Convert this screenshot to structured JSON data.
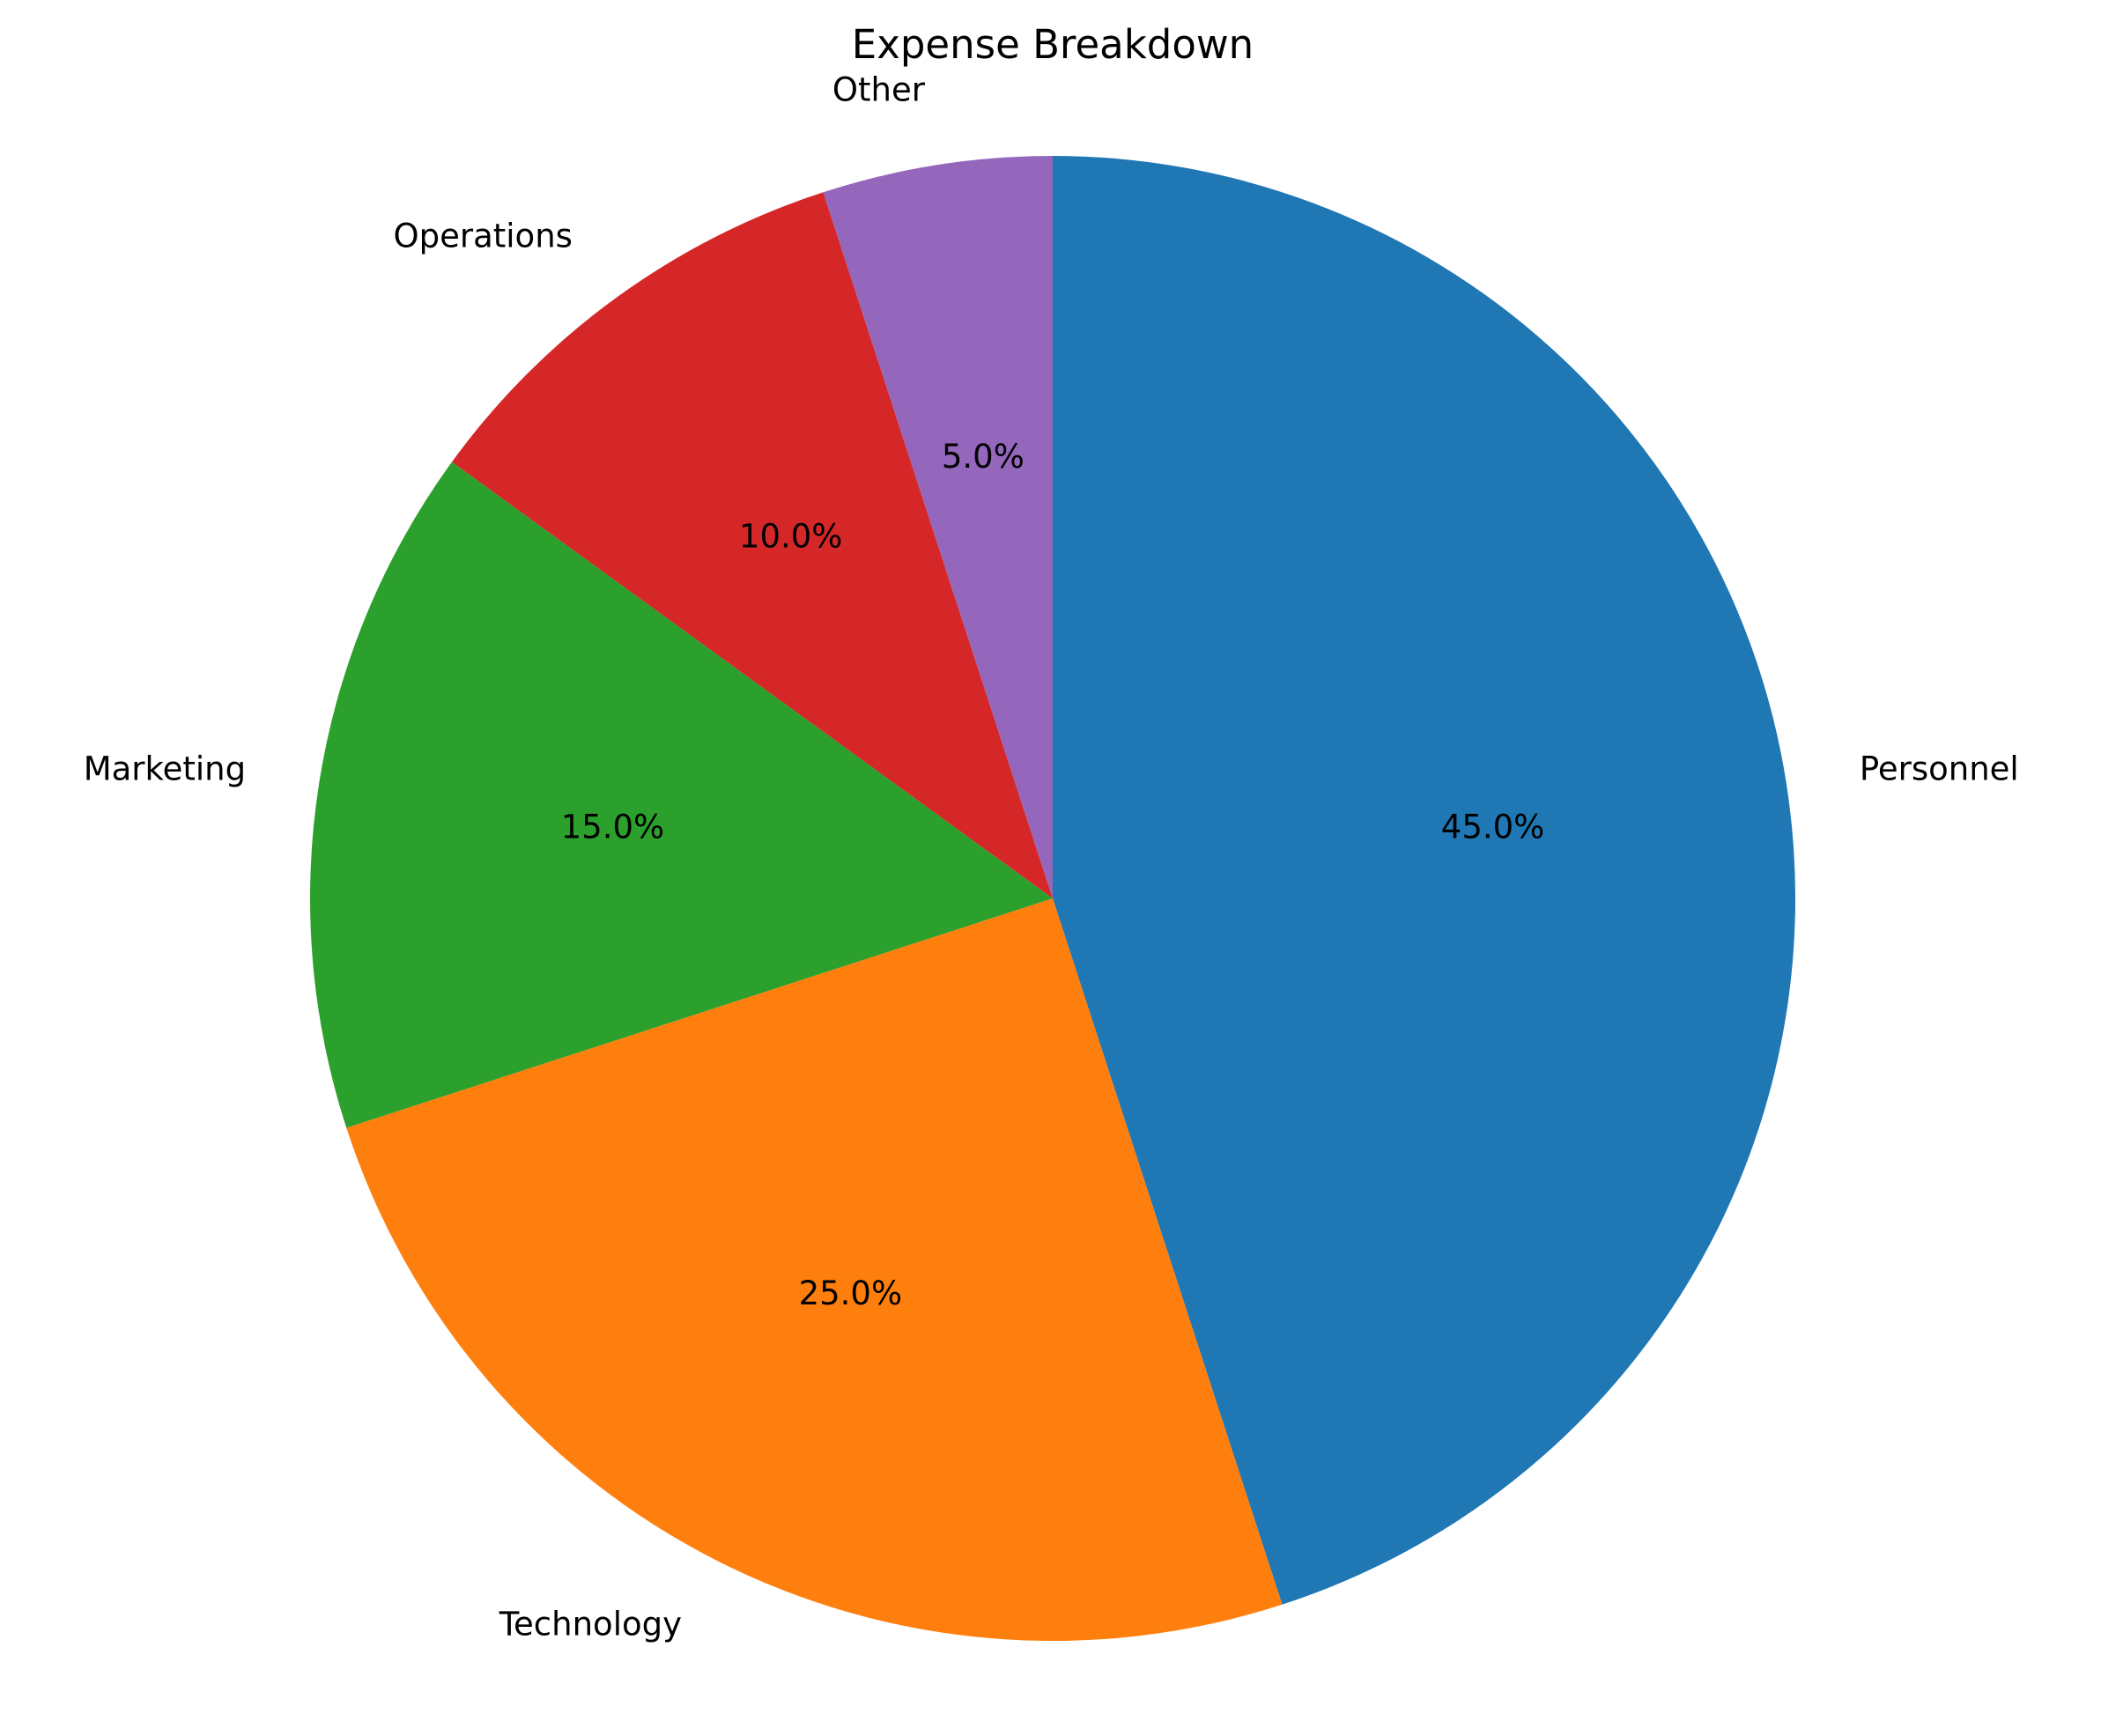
{
  "chart_data": {
    "type": "pie",
    "title": "Expense Breakdown",
    "start_angle_deg": 90,
    "direction": "clockwise",
    "slices": [
      {
        "label": "Personnel",
        "value": 45.0,
        "pct_label": "45.0%",
        "color": "#1f77b4"
      },
      {
        "label": "Technology",
        "value": 25.0,
        "pct_label": "25.0%",
        "color": "#ff7f0e"
      },
      {
        "label": "Marketing",
        "value": 15.0,
        "pct_label": "15.0%",
        "color": "#2ca02c"
      },
      {
        "label": "Operations",
        "value": 10.0,
        "pct_label": "10.0%",
        "color": "#d62728"
      },
      {
        "label": "Other",
        "value": 5.0,
        "pct_label": "5.0%",
        "color": "#9467bd"
      }
    ]
  }
}
